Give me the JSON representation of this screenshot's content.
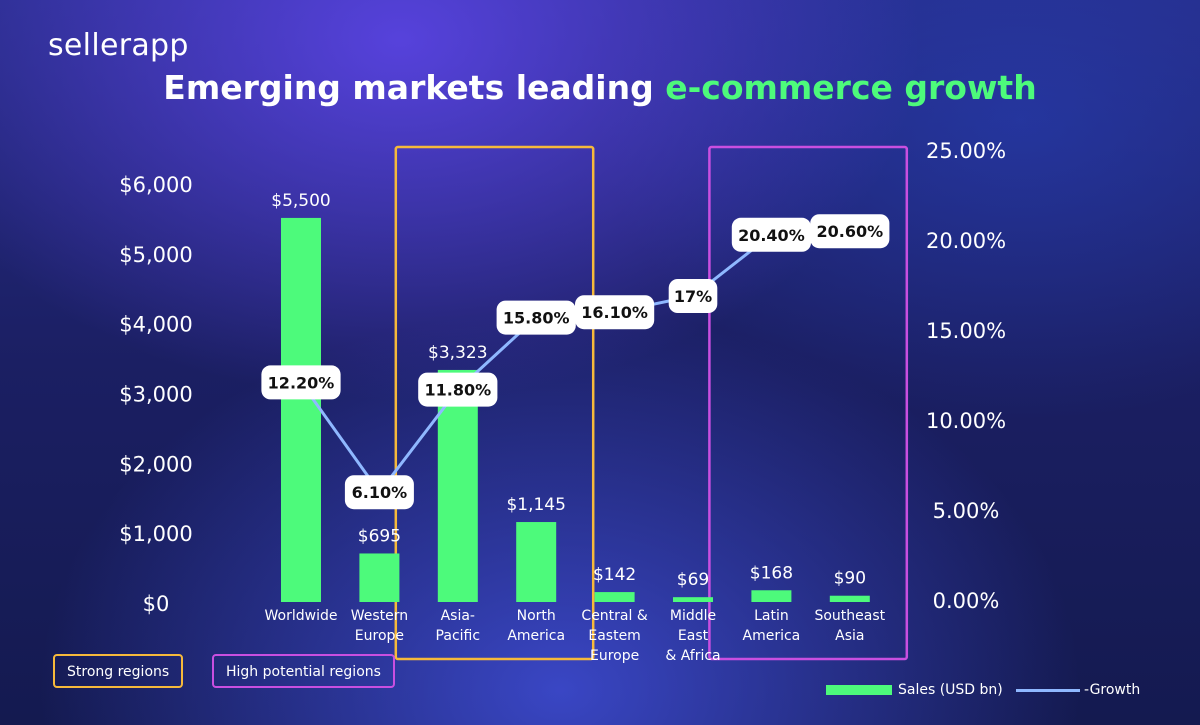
{
  "brand": {
    "logo_text": "sellerapp"
  },
  "header": {
    "title_main": "Emerging markets leading ",
    "title_accent": "e-commerce growth"
  },
  "colors": {
    "bar": "#4dfa7b",
    "line": "#8fb8ff",
    "accent_title": "#4dfa7b",
    "strong_box": "#f6b93b",
    "high_potential_box": "#c94fe0"
  },
  "legend": {
    "strong_label": "Strong regions",
    "high_potential_label": "High potential regions",
    "sales_label": "Sales (USD bn)",
    "growth_label": "-Growth"
  },
  "chart_data": {
    "type": "bar",
    "title": "Emerging markets leading e-commerce growth",
    "categories": [
      [
        "Worldwide"
      ],
      [
        "Western",
        "Europe"
      ],
      [
        "Asia-",
        "Pacific"
      ],
      [
        "North",
        "America"
      ],
      [
        "Central &",
        "Eastem",
        "Europe"
      ],
      [
        "Middle",
        "East",
        "& Africa"
      ],
      [
        "Latin",
        "America"
      ],
      [
        "Southeast",
        "Asia"
      ]
    ],
    "series": [
      {
        "name": "Sales (USD bn)",
        "type": "bar",
        "axis": "left",
        "values": [
          5500,
          695,
          3323,
          1145,
          142,
          69,
          168,
          90
        ],
        "labels": [
          "$5,500",
          "$695",
          "$3,323",
          "$1,145",
          "$142",
          "$69",
          "$168",
          "$90"
        ]
      },
      {
        "name": "-Growth",
        "type": "line",
        "axis": "right",
        "values": [
          12.2,
          6.1,
          11.8,
          15.8,
          16.1,
          17,
          20.4,
          20.6
        ],
        "labels": [
          "12.20%",
          "6.10%",
          "11.80%",
          "15.80%",
          "16.10%",
          "17%",
          "20.40%",
          "20.60%"
        ]
      }
    ],
    "y_left": {
      "ylim": [
        0,
        6000
      ],
      "ticks": [
        0,
        1000,
        2000,
        3000,
        4000,
        5000,
        6000
      ],
      "tick_labels": [
        "$0",
        "$1,000",
        "$2,000",
        "$3,000",
        "$4,000",
        "$5,000",
        "$6,000"
      ]
    },
    "y_right": {
      "ylim": [
        0,
        25
      ],
      "ticks": [
        0,
        5,
        10,
        15,
        20,
        25
      ],
      "tick_labels": [
        "0.00%",
        "5.00%",
        "10.00%",
        "15.00%",
        "20.00%",
        "25.00%"
      ]
    },
    "groups": [
      {
        "name": "Strong regions",
        "members": [
          2,
          3
        ]
      },
      {
        "name": "High potential regions",
        "members": [
          6,
          7
        ]
      }
    ],
    "grid": false,
    "legend_position": "bottom-right"
  }
}
